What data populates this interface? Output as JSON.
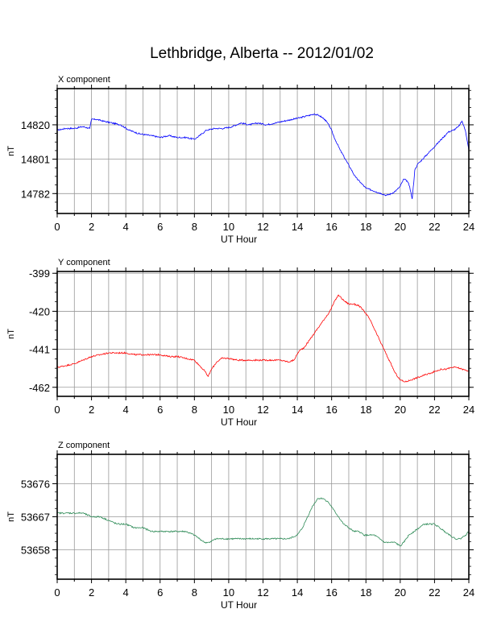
{
  "title": "Lethbridge, Alberta -- 2012/01/02",
  "chart_data": [
    {
      "type": "line",
      "component_label": "X component",
      "xlabel": "UT Hour",
      "ylabel": "nT",
      "xlim": [
        0,
        24
      ],
      "ylim": [
        14771,
        14840
      ],
      "x_ticks": [
        "0",
        "2",
        "4",
        "6",
        "8",
        "10",
        "12",
        "14",
        "16",
        "18",
        "20",
        "22",
        "24"
      ],
      "y_ticks": [
        14820,
        14801,
        14782
      ],
      "grid": true,
      "color": "#0000ff",
      "x": [
        0,
        0.5,
        1,
        1.5,
        1.9,
        2.0,
        2.3,
        2.7,
        3.2,
        3.7,
        4.2,
        4.8,
        5.5,
        6.0,
        6.5,
        7.0,
        7.5,
        8.0,
        8.3,
        8.7,
        9.2,
        9.7,
        10.2,
        10.7,
        11.2,
        11.7,
        12.2,
        12.7,
        13.2,
        13.7,
        14.2,
        14.6,
        15.0,
        15.3,
        15.6,
        15.9,
        16.2,
        16.5,
        16.8,
        17.1,
        17.4,
        17.7,
        18.0,
        18.3,
        18.6,
        18.9,
        19.2,
        19.5,
        19.8,
        20.0,
        20.2,
        20.4,
        20.55,
        20.7,
        20.85,
        21.0,
        21.3,
        21.6,
        21.9,
        22.2,
        22.5,
        22.8,
        23.1,
        23.4,
        23.6,
        23.8,
        24.0
      ],
      "y": [
        14817,
        14818,
        14818,
        14819,
        14818,
        14823,
        14823,
        14822,
        14821,
        14820,
        14817,
        14815,
        14814,
        14813,
        14814,
        14813,
        14813,
        14812,
        14814,
        14817,
        14818,
        14818,
        14819,
        14821,
        14820,
        14821,
        14820,
        14821,
        14822,
        14823,
        14824,
        14825,
        14826,
        14825,
        14823,
        14819,
        14812,
        14806,
        14801,
        14796,
        14791,
        14788,
        14785,
        14784,
        14783,
        14782,
        14781,
        14782,
        14784,
        14786,
        14790,
        14789,
        14786,
        14779,
        14795,
        14798,
        14801,
        14804,
        14807,
        14810,
        14813,
        14816,
        14817,
        14819,
        14822,
        14817,
        14806
      ]
    },
    {
      "type": "line",
      "component_label": "Y component",
      "xlabel": "UT Hour",
      "ylabel": "nT",
      "xlim": [
        0,
        24
      ],
      "ylim": [
        -467,
        -398
      ],
      "x_ticks": [
        "0",
        "2",
        "4",
        "6",
        "8",
        "10",
        "12",
        "14",
        "16",
        "18",
        "20",
        "22",
        "24"
      ],
      "y_ticks": [
        -399,
        -420,
        -441,
        -462
      ],
      "grid": true,
      "color": "#ff0000",
      "x": [
        0,
        0.5,
        1,
        1.5,
        2,
        2.5,
        3,
        3.5,
        4,
        4.5,
        5,
        5.5,
        6,
        6.5,
        7,
        7.5,
        8,
        8.3,
        8.6,
        8.8,
        9.0,
        9.3,
        9.6,
        10.0,
        10.5,
        11,
        11.5,
        12,
        12.5,
        13,
        13.5,
        13.8,
        14.1,
        14.4,
        14.7,
        15.0,
        15.3,
        15.6,
        15.9,
        16.2,
        16.4,
        16.7,
        17.0,
        17.3,
        17.6,
        17.9,
        18.2,
        18.5,
        18.8,
        19.1,
        19.4,
        19.7,
        20.0,
        20.3,
        20.6,
        20.9,
        21.2,
        21.5,
        21.8,
        22.1,
        22.4,
        22.7,
        23.0,
        23.3,
        23.6,
        24.0
      ],
      "y": [
        -451,
        -450,
        -449,
        -447,
        -445,
        -444,
        -443,
        -443,
        -443,
        -444,
        -444,
        -444,
        -444,
        -445,
        -445,
        -446,
        -447,
        -450,
        -453,
        -456,
        -452,
        -448,
        -446,
        -446,
        -447,
        -447,
        -447,
        -447,
        -447,
        -447,
        -448,
        -447,
        -442,
        -440,
        -436,
        -432,
        -428,
        -424,
        -420,
        -414,
        -411,
        -414,
        -416,
        -416,
        -417,
        -420,
        -424,
        -430,
        -436,
        -442,
        -448,
        -454,
        -458,
        -459,
        -458,
        -457,
        -456,
        -455,
        -454,
        -453,
        -452,
        -452,
        -451,
        -451,
        -452,
        -453
      ]
    },
    {
      "type": "line",
      "component_label": "Z component",
      "xlabel": "UT Hour",
      "ylabel": "nT",
      "xlim": [
        0,
        24
      ],
      "ylim": [
        53650,
        53684
      ],
      "x_ticks": [
        "0",
        "2",
        "4",
        "6",
        "8",
        "10",
        "12",
        "14",
        "16",
        "18",
        "20",
        "22",
        "24"
      ],
      "y_ticks": [
        53676,
        53667,
        53658
      ],
      "grid": true,
      "color": "#2e8b57",
      "x": [
        0,
        0.5,
        1,
        1.5,
        2,
        2.5,
        3,
        3.5,
        4,
        4.5,
        5,
        5.5,
        6,
        6.5,
        7,
        7.5,
        8,
        8.3,
        8.6,
        8.9,
        9.2,
        9.5,
        10,
        10.5,
        11,
        11.5,
        12,
        12.5,
        13,
        13.5,
        14,
        14.3,
        14.6,
        14.9,
        15.2,
        15.5,
        15.8,
        16.1,
        16.4,
        16.7,
        17,
        17.3,
        17.6,
        17.9,
        18.2,
        18.5,
        18.8,
        19.1,
        19.4,
        19.7,
        20.0,
        20.2,
        20.5,
        20.8,
        21.1,
        21.4,
        21.7,
        22.0,
        22.3,
        22.6,
        22.9,
        23.2,
        23.5,
        23.8,
        24.0
      ],
      "y": [
        53668,
        53668,
        53668,
        53668,
        53667,
        53667,
        53666,
        53665,
        53665,
        53664,
        53664,
        53663,
        53663,
        53663,
        53663,
        53663,
        53662,
        53661,
        53660,
        53660,
        53661,
        53661,
        53661,
        53661,
        53661,
        53661,
        53661,
        53661,
        53661,
        53661,
        53662,
        53664,
        53667,
        53670,
        53672,
        53672,
        53671,
        53669,
        53667,
        53665,
        53664,
        53663,
        53663,
        53662,
        53662,
        53662,
        53661,
        53660,
        53660,
        53660,
        53659,
        53660,
        53662,
        53663,
        53664,
        53665,
        53665,
        53665,
        53664,
        53663,
        53662,
        53661,
        53661,
        53662,
        53663
      ]
    }
  ]
}
